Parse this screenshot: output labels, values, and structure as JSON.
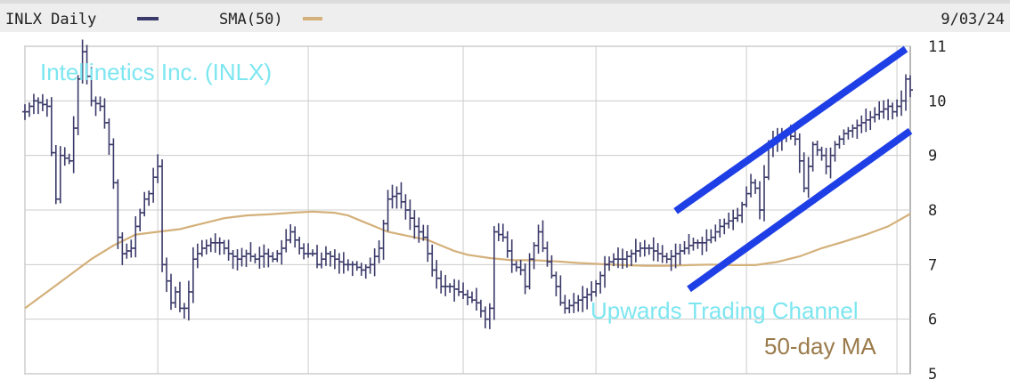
{
  "header": {
    "symbol_label": "INLX Daily",
    "sma_label": "SMA(50)",
    "date": "9/03/24"
  },
  "colors": {
    "price": "#3a3a6a",
    "sma": "#d4b07a",
    "channel": "#1f3fe6",
    "title": "#7de6f0",
    "ma_label": "#9a7a4a",
    "grid": "#cccccc",
    "header_bg": "#eeeeee"
  },
  "chart_data": {
    "type": "ohlc",
    "title": "Intellinetics Inc. (INLX)",
    "x_label": "",
    "y_label": "",
    "x_range": [
      0,
      200
    ],
    "y_range": [
      5,
      11
    ],
    "y_ticks": [
      5,
      6,
      7,
      8,
      9,
      10,
      11
    ],
    "grid": true,
    "vertical_grid_bars": [
      0,
      30,
      64,
      99,
      129,
      163,
      197
    ],
    "annotations": [
      {
        "text": "Upwards Trading Channel",
        "color": "#7de6f0"
      },
      {
        "text": "50-day MA",
        "color": "#9a7a4a"
      }
    ],
    "channel_lines": [
      {
        "x1": 147,
        "y1": 7.98,
        "x2": 199,
        "y2": 10.95
      },
      {
        "x1": 150,
        "y1": 6.55,
        "x2": 200,
        "y2": 9.45
      }
    ],
    "series": [
      {
        "name": "INLX Daily",
        "kind": "price",
        "anchors": [
          [
            0,
            9.8
          ],
          [
            2,
            10.0
          ],
          [
            5,
            9.9
          ],
          [
            7,
            8.2
          ],
          [
            8,
            9.0
          ],
          [
            10,
            8.9
          ],
          [
            11,
            9.5
          ],
          [
            12,
            10.4
          ],
          [
            13,
            10.9
          ],
          [
            15,
            10.0
          ],
          [
            17,
            9.9
          ],
          [
            18,
            9.6
          ],
          [
            19,
            9.2
          ],
          [
            20,
            8.5
          ],
          [
            21,
            7.5
          ],
          [
            22,
            7.2
          ],
          [
            24,
            7.3
          ],
          [
            25,
            7.7
          ],
          [
            27,
            8.2
          ],
          [
            28,
            8.3
          ],
          [
            29,
            8.6
          ],
          [
            30,
            8.8
          ],
          [
            31,
            7.0
          ],
          [
            32,
            6.7
          ],
          [
            33,
            6.3
          ],
          [
            34,
            6.5
          ],
          [
            35,
            6.2
          ],
          [
            36,
            6.2
          ],
          [
            37,
            6.5
          ],
          [
            38,
            7.1
          ],
          [
            40,
            7.3
          ],
          [
            42,
            7.4
          ],
          [
            44,
            7.4
          ],
          [
            46,
            7.2
          ],
          [
            48,
            7.1
          ],
          [
            50,
            7.2
          ],
          [
            52,
            7.1
          ],
          [
            54,
            7.2
          ],
          [
            56,
            7.1
          ],
          [
            58,
            7.3
          ],
          [
            60,
            7.6
          ],
          [
            62,
            7.3
          ],
          [
            63,
            7.2
          ],
          [
            65,
            7.2
          ],
          [
            66,
            7.0
          ],
          [
            68,
            7.2
          ],
          [
            70,
            7.1
          ],
          [
            72,
            7.0
          ],
          [
            74,
            7.0
          ],
          [
            76,
            6.9
          ],
          [
            78,
            7.0
          ],
          [
            80,
            7.3
          ],
          [
            82,
            8.2
          ],
          [
            84,
            8.3
          ],
          [
            86,
            8.0
          ],
          [
            88,
            7.7
          ],
          [
            90,
            7.5
          ],
          [
            91,
            7.2
          ],
          [
            92,
            6.9
          ],
          [
            94,
            6.6
          ],
          [
            96,
            6.6
          ],
          [
            98,
            6.5
          ],
          [
            100,
            6.4
          ],
          [
            102,
            6.3
          ],
          [
            104,
            6.0
          ],
          [
            105,
            6.2
          ],
          [
            106,
            7.6
          ],
          [
            108,
            7.5
          ],
          [
            110,
            7.0
          ],
          [
            112,
            6.9
          ],
          [
            113,
            6.6
          ],
          [
            114,
            7.1
          ],
          [
            116,
            7.6
          ],
          [
            117,
            7.3
          ],
          [
            119,
            6.8
          ],
          [
            120,
            6.6
          ],
          [
            121,
            6.3
          ],
          [
            122,
            6.2
          ],
          [
            124,
            6.3
          ],
          [
            126,
            6.4
          ],
          [
            128,
            6.5
          ],
          [
            130,
            6.8
          ],
          [
            131,
            7.0
          ],
          [
            133,
            7.1
          ],
          [
            135,
            7.1
          ],
          [
            137,
            7.2
          ],
          [
            139,
            7.3
          ],
          [
            141,
            7.3
          ],
          [
            143,
            7.2
          ],
          [
            145,
            7.1
          ],
          [
            147,
            7.2
          ],
          [
            149,
            7.3
          ],
          [
            151,
            7.4
          ],
          [
            153,
            7.4
          ],
          [
            155,
            7.5
          ],
          [
            157,
            7.7
          ],
          [
            159,
            7.8
          ],
          [
            161,
            7.9
          ],
          [
            162,
            8.1
          ],
          [
            164,
            8.5
          ],
          [
            165,
            8.4
          ],
          [
            166,
            8.0
          ],
          [
            168,
            9.2
          ],
          [
            170,
            9.3
          ],
          [
            172,
            9.4
          ],
          [
            174,
            9.3
          ],
          [
            175,
            8.9
          ],
          [
            176,
            8.4
          ],
          [
            178,
            9.2
          ],
          [
            180,
            9.0
          ],
          [
            181,
            8.8
          ],
          [
            183,
            9.2
          ],
          [
            185,
            9.4
          ],
          [
            187,
            9.5
          ],
          [
            189,
            9.6
          ],
          [
            191,
            9.7
          ],
          [
            193,
            9.8
          ],
          [
            195,
            9.9
          ],
          [
            196,
            9.8
          ],
          [
            198,
            10.0
          ],
          [
            199,
            10.4
          ],
          [
            200,
            10.2
          ]
        ]
      },
      {
        "name": "SMA(50)",
        "kind": "line",
        "points": [
          [
            0,
            6.2
          ],
          [
            5,
            6.5
          ],
          [
            10,
            6.8
          ],
          [
            15,
            7.1
          ],
          [
            20,
            7.35
          ],
          [
            25,
            7.55
          ],
          [
            30,
            7.6
          ],
          [
            35,
            7.65
          ],
          [
            40,
            7.75
          ],
          [
            45,
            7.85
          ],
          [
            50,
            7.9
          ],
          [
            55,
            7.92
          ],
          [
            60,
            7.95
          ],
          [
            65,
            7.97
          ],
          [
            70,
            7.95
          ],
          [
            73,
            7.9
          ],
          [
            76,
            7.8
          ],
          [
            79,
            7.7
          ],
          [
            82,
            7.6
          ],
          [
            85,
            7.55
          ],
          [
            88,
            7.5
          ],
          [
            91,
            7.45
          ],
          [
            94,
            7.35
          ],
          [
            97,
            7.25
          ],
          [
            100,
            7.18
          ],
          [
            105,
            7.12
          ],
          [
            110,
            7.08
          ],
          [
            115,
            7.08
          ],
          [
            120,
            7.06
          ],
          [
            125,
            7.03
          ],
          [
            130,
            7.01
          ],
          [
            135,
            6.99
          ],
          [
            140,
            6.98
          ],
          [
            145,
            6.98
          ],
          [
            150,
            6.99
          ],
          [
            155,
            7.0
          ],
          [
            160,
            6.99
          ],
          [
            165,
            6.99
          ],
          [
            170,
            7.05
          ],
          [
            175,
            7.15
          ],
          [
            180,
            7.3
          ],
          [
            185,
            7.42
          ],
          [
            190,
            7.55
          ],
          [
            195,
            7.7
          ],
          [
            200,
            7.93
          ]
        ]
      }
    ]
  }
}
